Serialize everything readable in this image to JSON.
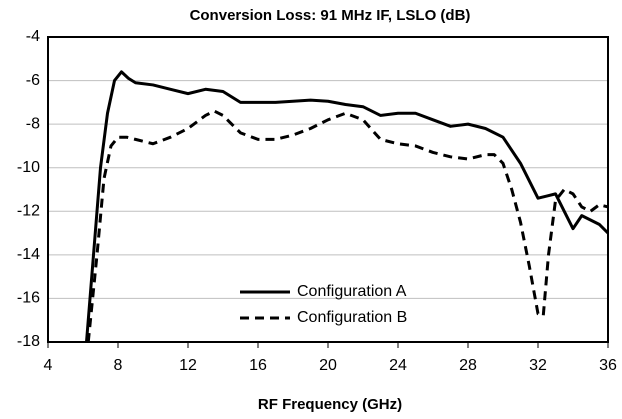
{
  "chart_data": {
    "type": "line",
    "title": "Conversion Loss: 91 MHz IF, LSLO (dB)",
    "x_label": "RF Frequency (GHz)",
    "xlim": [
      4,
      36
    ],
    "xticks": [
      4,
      8,
      12,
      16,
      20,
      24,
      28,
      32,
      36
    ],
    "ylim": [
      -18,
      -4
    ],
    "yticks": [
      -18,
      -16,
      -14,
      -12,
      -10,
      -8,
      -6,
      -4
    ],
    "grid": true,
    "legend": "inside-bottom-center",
    "series": [
      {
        "name": "Configuration A",
        "color": "#000000",
        "dash": false,
        "x": [
          6.2,
          6.6,
          7.0,
          7.4,
          7.8,
          8.2,
          8.6,
          9,
          10,
          11,
          12,
          13,
          14,
          15,
          16,
          17,
          18,
          19,
          20,
          21,
          22,
          23,
          24,
          25,
          26,
          27,
          28,
          29,
          30,
          31,
          32,
          32.5,
          33,
          33.5,
          34,
          34.5,
          35,
          35.5,
          36
        ],
        "values": [
          -18,
          -14,
          -10,
          -7.5,
          -6,
          -5.6,
          -5.9,
          -6.1,
          -6.2,
          -6.4,
          -6.6,
          -6.4,
          -6.5,
          -7.0,
          -7.0,
          -7.0,
          -6.95,
          -6.9,
          -6.95,
          -7.1,
          -7.2,
          -7.6,
          -7.5,
          -7.5,
          -7.8,
          -8.1,
          -8.0,
          -8.2,
          -8.6,
          -9.8,
          -11.4,
          -11.3,
          -11.2,
          -12.0,
          -12.8,
          -12.2,
          -12.4,
          -12.6,
          -13.0
        ]
      },
      {
        "name": "Configuration B",
        "color": "#000000",
        "dash": true,
        "x": [
          6.3,
          6.8,
          7.2,
          7.6,
          8,
          8.5,
          9,
          10,
          11,
          12,
          13,
          13.5,
          14,
          15,
          16,
          17,
          18,
          19,
          20,
          21,
          22,
          23,
          24,
          25,
          26,
          27,
          28,
          29,
          29.5,
          30,
          30.5,
          31,
          31.5,
          32,
          32.3,
          32.6,
          33,
          33.5,
          34,
          34.5,
          35,
          35.5,
          36
        ],
        "values": [
          -18,
          -14,
          -10.5,
          -9,
          -8.6,
          -8.6,
          -8.7,
          -8.9,
          -8.6,
          -8.2,
          -7.6,
          -7.4,
          -7.6,
          -8.4,
          -8.7,
          -8.7,
          -8.5,
          -8.2,
          -7.8,
          -7.5,
          -7.8,
          -8.7,
          -8.9,
          -9.0,
          -9.3,
          -9.5,
          -9.6,
          -9.4,
          -9.4,
          -9.8,
          -11,
          -12.5,
          -14.5,
          -16.7,
          -16.8,
          -14,
          -11.5,
          -11.0,
          -11.2,
          -11.8,
          -12.0,
          -11.7,
          -11.8
        ]
      }
    ]
  }
}
